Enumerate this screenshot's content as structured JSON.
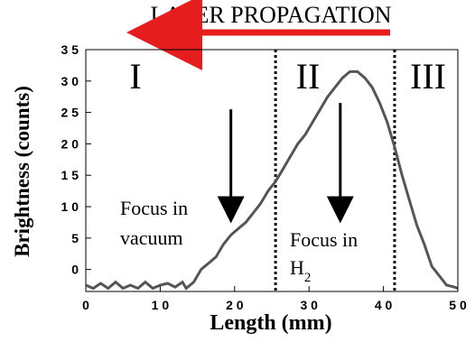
{
  "chart_data": {
    "type": "line",
    "title": "LASER PROPAGATION",
    "xlabel": "Length (mm)",
    "ylabel": "Brightness (counts)",
    "xlim": [
      0,
      50
    ],
    "ylim": [
      -3.5,
      35
    ],
    "x_ticks": [
      0,
      10,
      20,
      30,
      40,
      50
    ],
    "y_ticks": [
      0,
      5,
      10,
      15,
      20,
      25,
      30,
      35
    ],
    "x_tick_labels": [
      "0",
      "1 0",
      "2 0",
      "3 0",
      "4 0",
      "5 0"
    ],
    "y_tick_labels": [
      "0",
      "5",
      "1 0",
      "1 5",
      "2 0",
      "2 5",
      "3 0",
      "3 5"
    ],
    "grid": false,
    "regions": [
      {
        "label": "I",
        "x_start": 0,
        "x_end": 25.5
      },
      {
        "label": "II",
        "x_start": 25.5,
        "x_end": 41.5
      },
      {
        "label": "III",
        "x_start": 41.5,
        "x_end": 50
      }
    ],
    "divider_x": [
      25.5,
      41.5
    ],
    "annotations": [
      {
        "lines": [
          "Focus in",
          "vacuum"
        ],
        "arrow_x": 19.5,
        "arrow_from_y": 25.5,
        "arrow_to_y": 9.5
      },
      {
        "lines": [
          "Focus in",
          "H"
        ],
        "subscript": "2",
        "arrow_x": 34.2,
        "arrow_from_y": 26.5,
        "arrow_to_y": 9.5
      }
    ],
    "series": [
      {
        "color": "#555555",
        "points": [
          [
            0.0,
            -2.5
          ],
          [
            1.0,
            -3.0
          ],
          [
            2.0,
            -2.2
          ],
          [
            3.0,
            -3.0
          ],
          [
            4.0,
            -2.0
          ],
          [
            5.0,
            -3.0
          ],
          [
            6.0,
            -2.5
          ],
          [
            7.0,
            -3.0
          ],
          [
            8.0,
            -2.0
          ],
          [
            9.0,
            -3.0
          ],
          [
            10.0,
            -2.5
          ],
          [
            11.0,
            -2.2
          ],
          [
            12.0,
            -2.8
          ],
          [
            13.0,
            -2.0
          ],
          [
            13.5,
            -3.0
          ],
          [
            14.5,
            -2.0
          ],
          [
            15.5,
            0.0
          ],
          [
            16.5,
            1.0
          ],
          [
            17.5,
            2.0
          ],
          [
            18.5,
            4.0
          ],
          [
            19.5,
            5.5
          ],
          [
            20.5,
            6.5
          ],
          [
            21.5,
            7.5
          ],
          [
            22.5,
            9.0
          ],
          [
            23.5,
            10.5
          ],
          [
            24.5,
            12.5
          ],
          [
            25.5,
            14.0
          ],
          [
            26.5,
            16.0
          ],
          [
            27.5,
            18.0
          ],
          [
            28.5,
            20.0
          ],
          [
            29.5,
            21.5
          ],
          [
            30.5,
            23.5
          ],
          [
            31.5,
            25.5
          ],
          [
            32.5,
            27.5
          ],
          [
            33.5,
            29.0
          ],
          [
            34.5,
            30.5
          ],
          [
            35.5,
            31.5
          ],
          [
            36.5,
            31.5
          ],
          [
            37.5,
            30.5
          ],
          [
            38.5,
            29.0
          ],
          [
            39.5,
            26.5
          ],
          [
            40.5,
            23.5
          ],
          [
            41.5,
            19.5
          ],
          [
            42.5,
            15.0
          ],
          [
            43.5,
            11.0
          ],
          [
            44.5,
            7.0
          ],
          [
            45.5,
            4.0
          ],
          [
            46.5,
            0.5
          ],
          [
            47.5,
            -1.0
          ],
          [
            48.5,
            -2.5
          ],
          [
            49.5,
            -2.8
          ],
          [
            50.0,
            -3.0
          ]
        ]
      }
    ]
  }
}
